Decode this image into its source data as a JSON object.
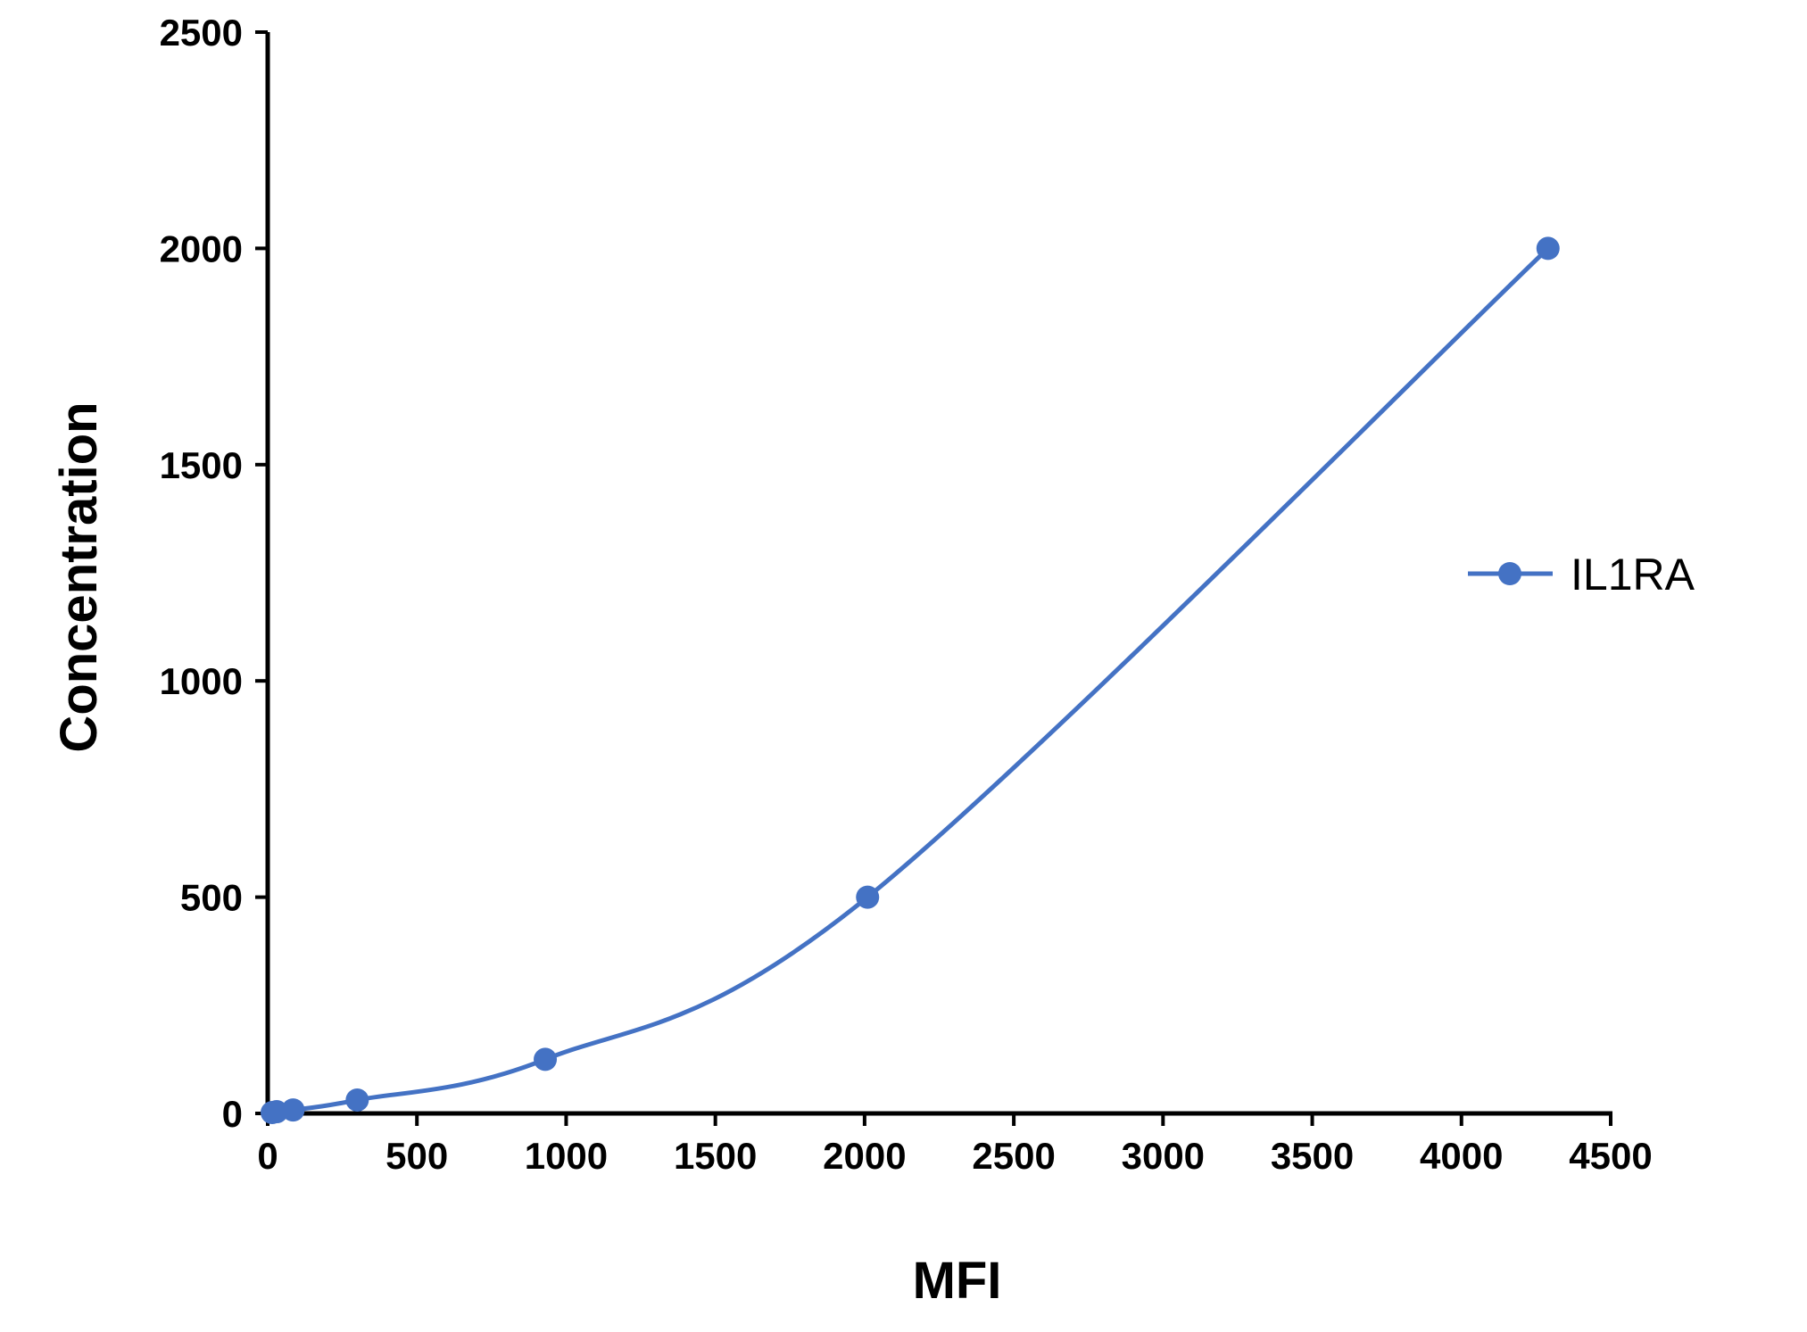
{
  "chart_data": {
    "type": "line",
    "xlabel": "MFI",
    "ylabel": "Concentration",
    "xlim": [
      0,
      4500
    ],
    "ylim": [
      0,
      2500
    ],
    "xticks": [
      "0",
      "500",
      "1000",
      "1500",
      "2000",
      "2500",
      "3000",
      "3500",
      "4000",
      "4500"
    ],
    "yticks": [
      "0",
      "500",
      "1000",
      "1500",
      "2000",
      "2500"
    ],
    "grid": false,
    "legend_position": "right",
    "series": [
      {
        "name": "IL1RA",
        "color": "#4472C4",
        "marker": "circle",
        "smooth": true,
        "points": [
          {
            "x": 15,
            "y": 2
          },
          {
            "x": 30,
            "y": 4
          },
          {
            "x": 85,
            "y": 8
          },
          {
            "x": 300,
            "y": 31
          },
          {
            "x": 930,
            "y": 125
          },
          {
            "x": 2010,
            "y": 500
          },
          {
            "x": 4290,
            "y": 2000
          }
        ]
      }
    ]
  }
}
